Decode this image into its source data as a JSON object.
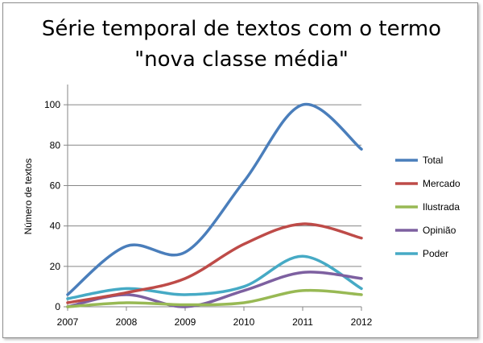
{
  "chart_data": {
    "type": "line",
    "title_lines": [
      "Série temporal de textos com o termo",
      "\"nova classe média\""
    ],
    "xlabel": "",
    "ylabel": "Número de textos",
    "x": [
      "2007",
      "2008",
      "2009",
      "2010",
      "2011",
      "2012"
    ],
    "ylim": [
      0,
      110
    ],
    "yticks": [
      0,
      20,
      40,
      60,
      80,
      100
    ],
    "grid": true,
    "smooth": true,
    "legend": "right",
    "series": [
      {
        "name": "Total",
        "color": "#4a7ebb",
        "values": [
          6,
          30,
          27,
          62,
          100,
          78
        ]
      },
      {
        "name": "Mercado",
        "color": "#be4b48",
        "values": [
          2,
          7,
          14,
          31,
          41,
          34
        ]
      },
      {
        "name": "Ilustrada",
        "color": "#98b954",
        "values": [
          0,
          2,
          1,
          2,
          8,
          6
        ]
      },
      {
        "name": "Opinião",
        "color": "#7d60a0",
        "values": [
          0,
          6,
          0,
          8,
          17,
          14
        ]
      },
      {
        "name": "Poder",
        "color": "#46aac5",
        "values": [
          4,
          9,
          6,
          10,
          25,
          9
        ]
      }
    ]
  }
}
